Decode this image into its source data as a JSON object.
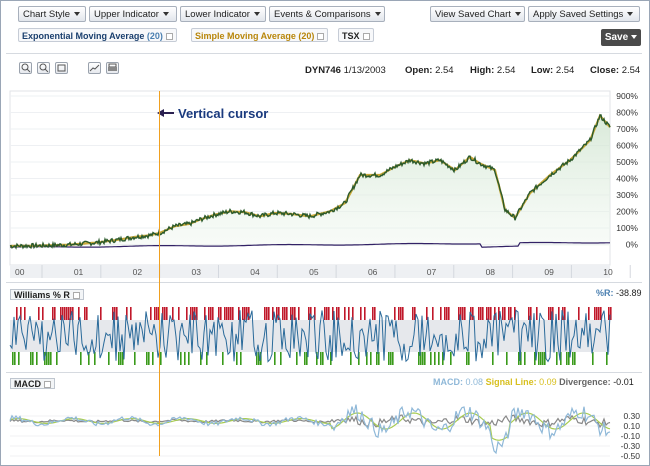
{
  "toolbar": {
    "chart_style": "Chart Style",
    "upper_indicator": "Upper Indicator",
    "lower_indicator": "Lower Indicator",
    "events": "Events & Comparisons",
    "view_saved": "View Saved Chart",
    "apply_saved": "Apply Saved Settings",
    "save": "Save"
  },
  "overlays": {
    "ema": "Exponential Moving Average",
    "ema_period": "(20)",
    "sma": "Simple Moving Average",
    "sma_period": "(20)",
    "compare": "TSX"
  },
  "quote": {
    "symbol": "DYN746",
    "date": "1/13/2003",
    "open_label": "Open:",
    "open": "2.54",
    "high_label": "High:",
    "high": "2.54",
    "low_label": "Low:",
    "low": "2.54",
    "close_label": "Close:",
    "close": "2.54"
  },
  "annotation": "Vertical cursor",
  "price_axis": [
    "900%",
    "800%",
    "700%",
    "600%",
    "500%",
    "400%",
    "300%",
    "200%",
    "100%",
    "0%"
  ],
  "year_labels": [
    "00",
    "01",
    "02",
    "03",
    "04",
    "05",
    "06",
    "07",
    "08",
    "09",
    "10"
  ],
  "williams": {
    "label": "Williams % R",
    "value_label": "%R:",
    "value": "-38.89"
  },
  "macd": {
    "label": "MACD",
    "macd_label": "MACD:",
    "macd_value": "0.08",
    "signal_label": "Signal Line:",
    "signal_value": "0.09",
    "divergence_label": "Divergence:",
    "divergence_value": "-0.01",
    "axis": [
      "0.30",
      "0.10",
      "-0.10",
      "-0.30",
      "-0.50"
    ]
  },
  "colors": {
    "price": "#2b5a2b",
    "average": "#c8a838",
    "compare": "#332266",
    "cursor": "#f0a020",
    "williams_high": "#c0182a",
    "williams_low": "#3a9a1a",
    "williams_mid": "#2a6a9a",
    "macd_line": "#8fb8d8",
    "signal_line": "#a8cc50",
    "divergence": "#888888"
  }
}
